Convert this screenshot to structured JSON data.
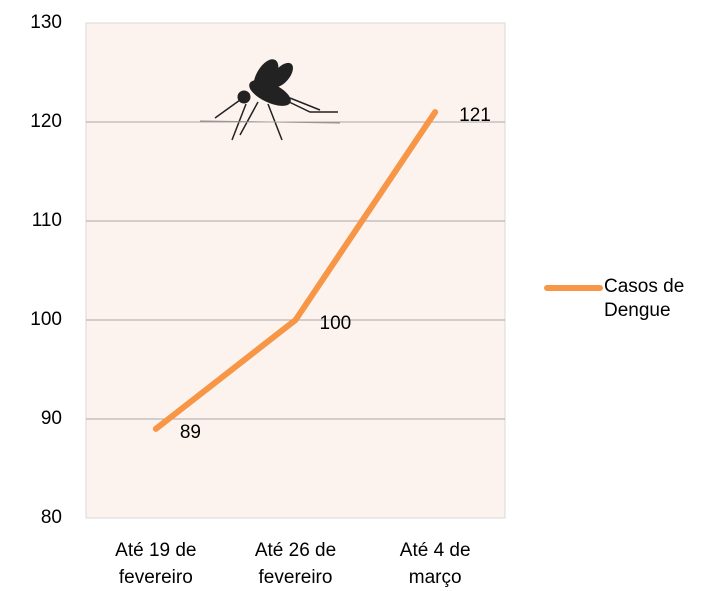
{
  "chart_data": {
    "type": "line",
    "categories": [
      "Até 19 de fevereiro",
      "Até 26 de fevereiro",
      "Até 4 de março"
    ],
    "series": [
      {
        "name": "Casos de Dengue",
        "color": "#f79646",
        "values": [
          89,
          100,
          121
        ]
      }
    ],
    "ylim": [
      80,
      130
    ],
    "yticks": [
      80,
      90,
      100,
      110,
      120,
      130
    ],
    "grid": true,
    "legend": "right"
  }
}
